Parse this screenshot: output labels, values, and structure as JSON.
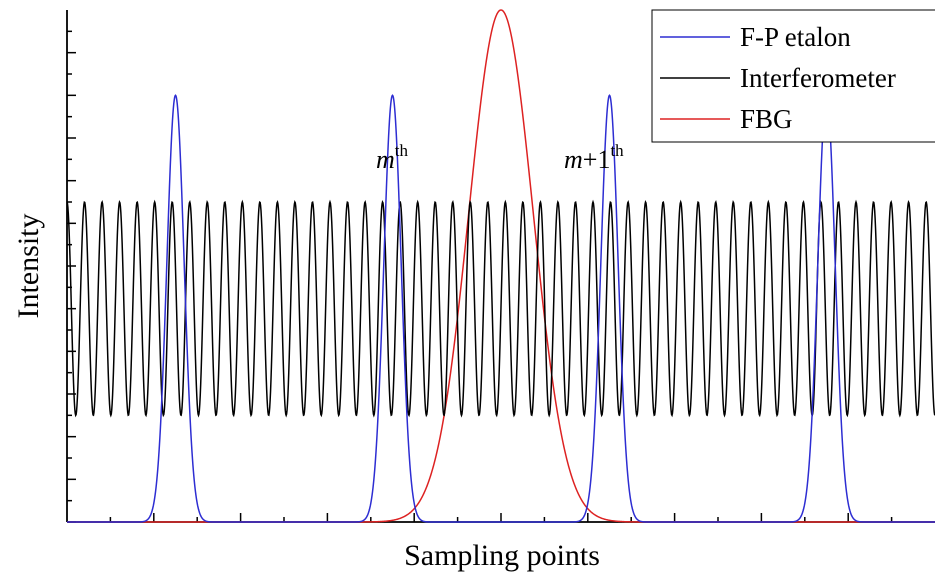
{
  "chart_data": {
    "type": "line",
    "title": "",
    "xlabel": "Sampling points",
    "ylabel": "Intensity",
    "xlim": [
      0,
      1000
    ],
    "ylim": [
      0,
      1.2
    ],
    "grid": false,
    "x_tick_labels_shown": false,
    "y_tick_labels_shown": false,
    "legend_position": "top-right",
    "series": [
      {
        "name": "F-P etalon",
        "color": "#2d2dd2",
        "shape": "gaussian-peaks",
        "peak_centers": [
          125,
          375,
          625,
          875
        ],
        "peak_height": 1.0,
        "peak_sigma": 10,
        "baseline": 0.0
      },
      {
        "name": "Interferometer",
        "color": "#000000",
        "shape": "sinusoid",
        "mean": 0.5,
        "amplitude": 0.25,
        "period": 20.2
      },
      {
        "name": "FBG",
        "color": "#dd2222",
        "shape": "gaussian-peak",
        "peak_center": 500,
        "peak_height": 1.2,
        "peak_sigma": 37,
        "baseline": 0.0
      }
    ],
    "annotations": [
      {
        "main": "m",
        "suffix": "",
        "sup": "th",
        "x": 375
      },
      {
        "main": "m",
        "suffix": "+1",
        "sup": "th",
        "x": 625
      }
    ]
  }
}
